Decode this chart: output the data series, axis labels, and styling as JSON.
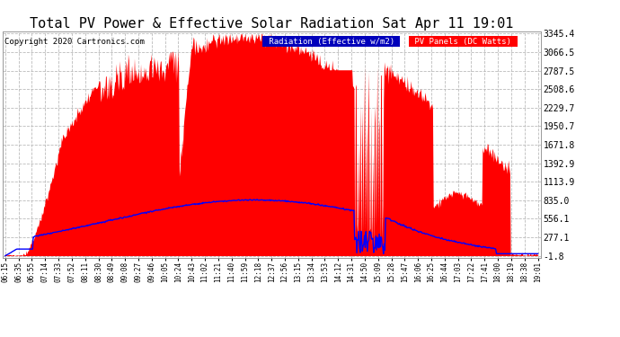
{
  "title": "Total PV Power & Effective Solar Radiation Sat Apr 11 19:01",
  "copyright": "Copyright 2020 Cartronics.com",
  "legend_radiation": "Radiation (Effective w/m2)",
  "legend_pv": "PV Panels (DC Watts)",
  "yticks": [
    3345.4,
    3066.5,
    2787.5,
    2508.6,
    2229.7,
    1950.7,
    1671.8,
    1392.9,
    1113.9,
    835.0,
    556.1,
    277.1,
    -1.8
  ],
  "ymin": -1.8,
  "ymax": 3345.4,
  "background_color": "#ffffff",
  "grid_color": "#bbbbbb",
  "fill_color": "#ff0000",
  "line_color": "#0000ff",
  "title_color": "#000000",
  "title_fontsize": 11,
  "radiation_legend_bg": "#0000bb",
  "pv_legend_bg": "#ff0000",
  "x_labels": [
    "06:15",
    "06:35",
    "06:55",
    "07:14",
    "07:33",
    "07:52",
    "08:11",
    "08:30",
    "08:49",
    "09:08",
    "09:27",
    "09:46",
    "10:05",
    "10:24",
    "10:43",
    "11:02",
    "11:21",
    "11:40",
    "11:59",
    "12:18",
    "12:37",
    "12:56",
    "13:15",
    "13:34",
    "13:53",
    "14:12",
    "14:31",
    "14:50",
    "15:09",
    "15:28",
    "15:47",
    "16:06",
    "16:25",
    "16:44",
    "17:03",
    "17:22",
    "17:41",
    "18:00",
    "18:19",
    "18:38",
    "19:01"
  ]
}
